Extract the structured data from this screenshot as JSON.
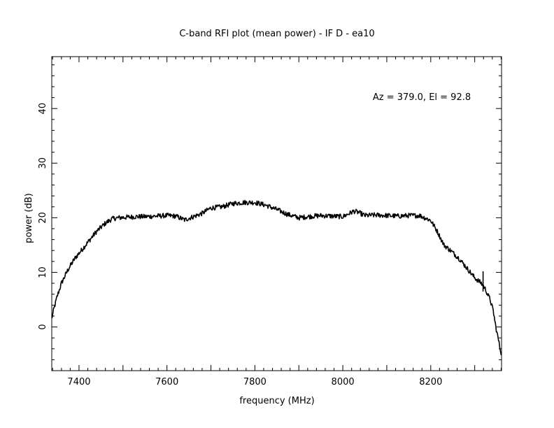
{
  "chart_data": {
    "type": "line",
    "title": "C-band RFI plot (mean power) - IF D - ea10",
    "xlabel": "frequency (MHz)",
    "ylabel": "power (dB)",
    "annotation": "Az = 379.0, El = 92.8",
    "xlim": [
      7338,
      8361
    ],
    "ylim": [
      -8,
      49.5
    ],
    "xticks": [
      "7400",
      "7600",
      "7800",
      "8000",
      "8200"
    ],
    "yticks": [
      "0",
      "10",
      "20",
      "30",
      "40"
    ],
    "line_color": "#000000",
    "series": [
      {
        "x": [
          7338,
          7342,
          7350,
          7360,
          7375,
          7390,
          7410,
          7425,
          7440,
          7460,
          7475,
          7490,
          7510,
          7530,
          7550,
          7575,
          7600,
          7620,
          7640,
          7660,
          7680,
          7700,
          7725,
          7750,
          7775,
          7800,
          7825,
          7850,
          7875,
          7900,
          7920,
          7950,
          7975,
          8000,
          8025,
          8035,
          8050,
          8075,
          8100,
          8125,
          8150,
          8175,
          8200,
          8215,
          8230,
          8245,
          8265,
          8280,
          8300,
          8315,
          8320,
          8325,
          8335,
          8342,
          8348,
          8353,
          8358,
          8361
        ],
        "y": [
          1.5,
          3,
          5.5,
          8,
          10.5,
          12.5,
          14.5,
          16,
          17.5,
          19,
          19.8,
          20,
          20.1,
          20.2,
          20.2,
          20.3,
          20.4,
          20.3,
          19.6,
          20.2,
          20.8,
          21.8,
          22,
          22.6,
          22.8,
          22.8,
          22.3,
          21.5,
          20.6,
          20,
          20.2,
          20.4,
          20.3,
          20.2,
          21.2,
          21,
          20.4,
          20.5,
          20.4,
          20.3,
          20.4,
          20.4,
          19.5,
          17.5,
          15,
          14,
          12.5,
          11,
          9,
          8,
          7.5,
          6.8,
          5,
          3,
          0,
          -2,
          -4,
          -5
        ]
      },
      {
        "x": [
          8319,
          8319
        ],
        "y": [
          6.5,
          10.2
        ]
      }
    ]
  }
}
